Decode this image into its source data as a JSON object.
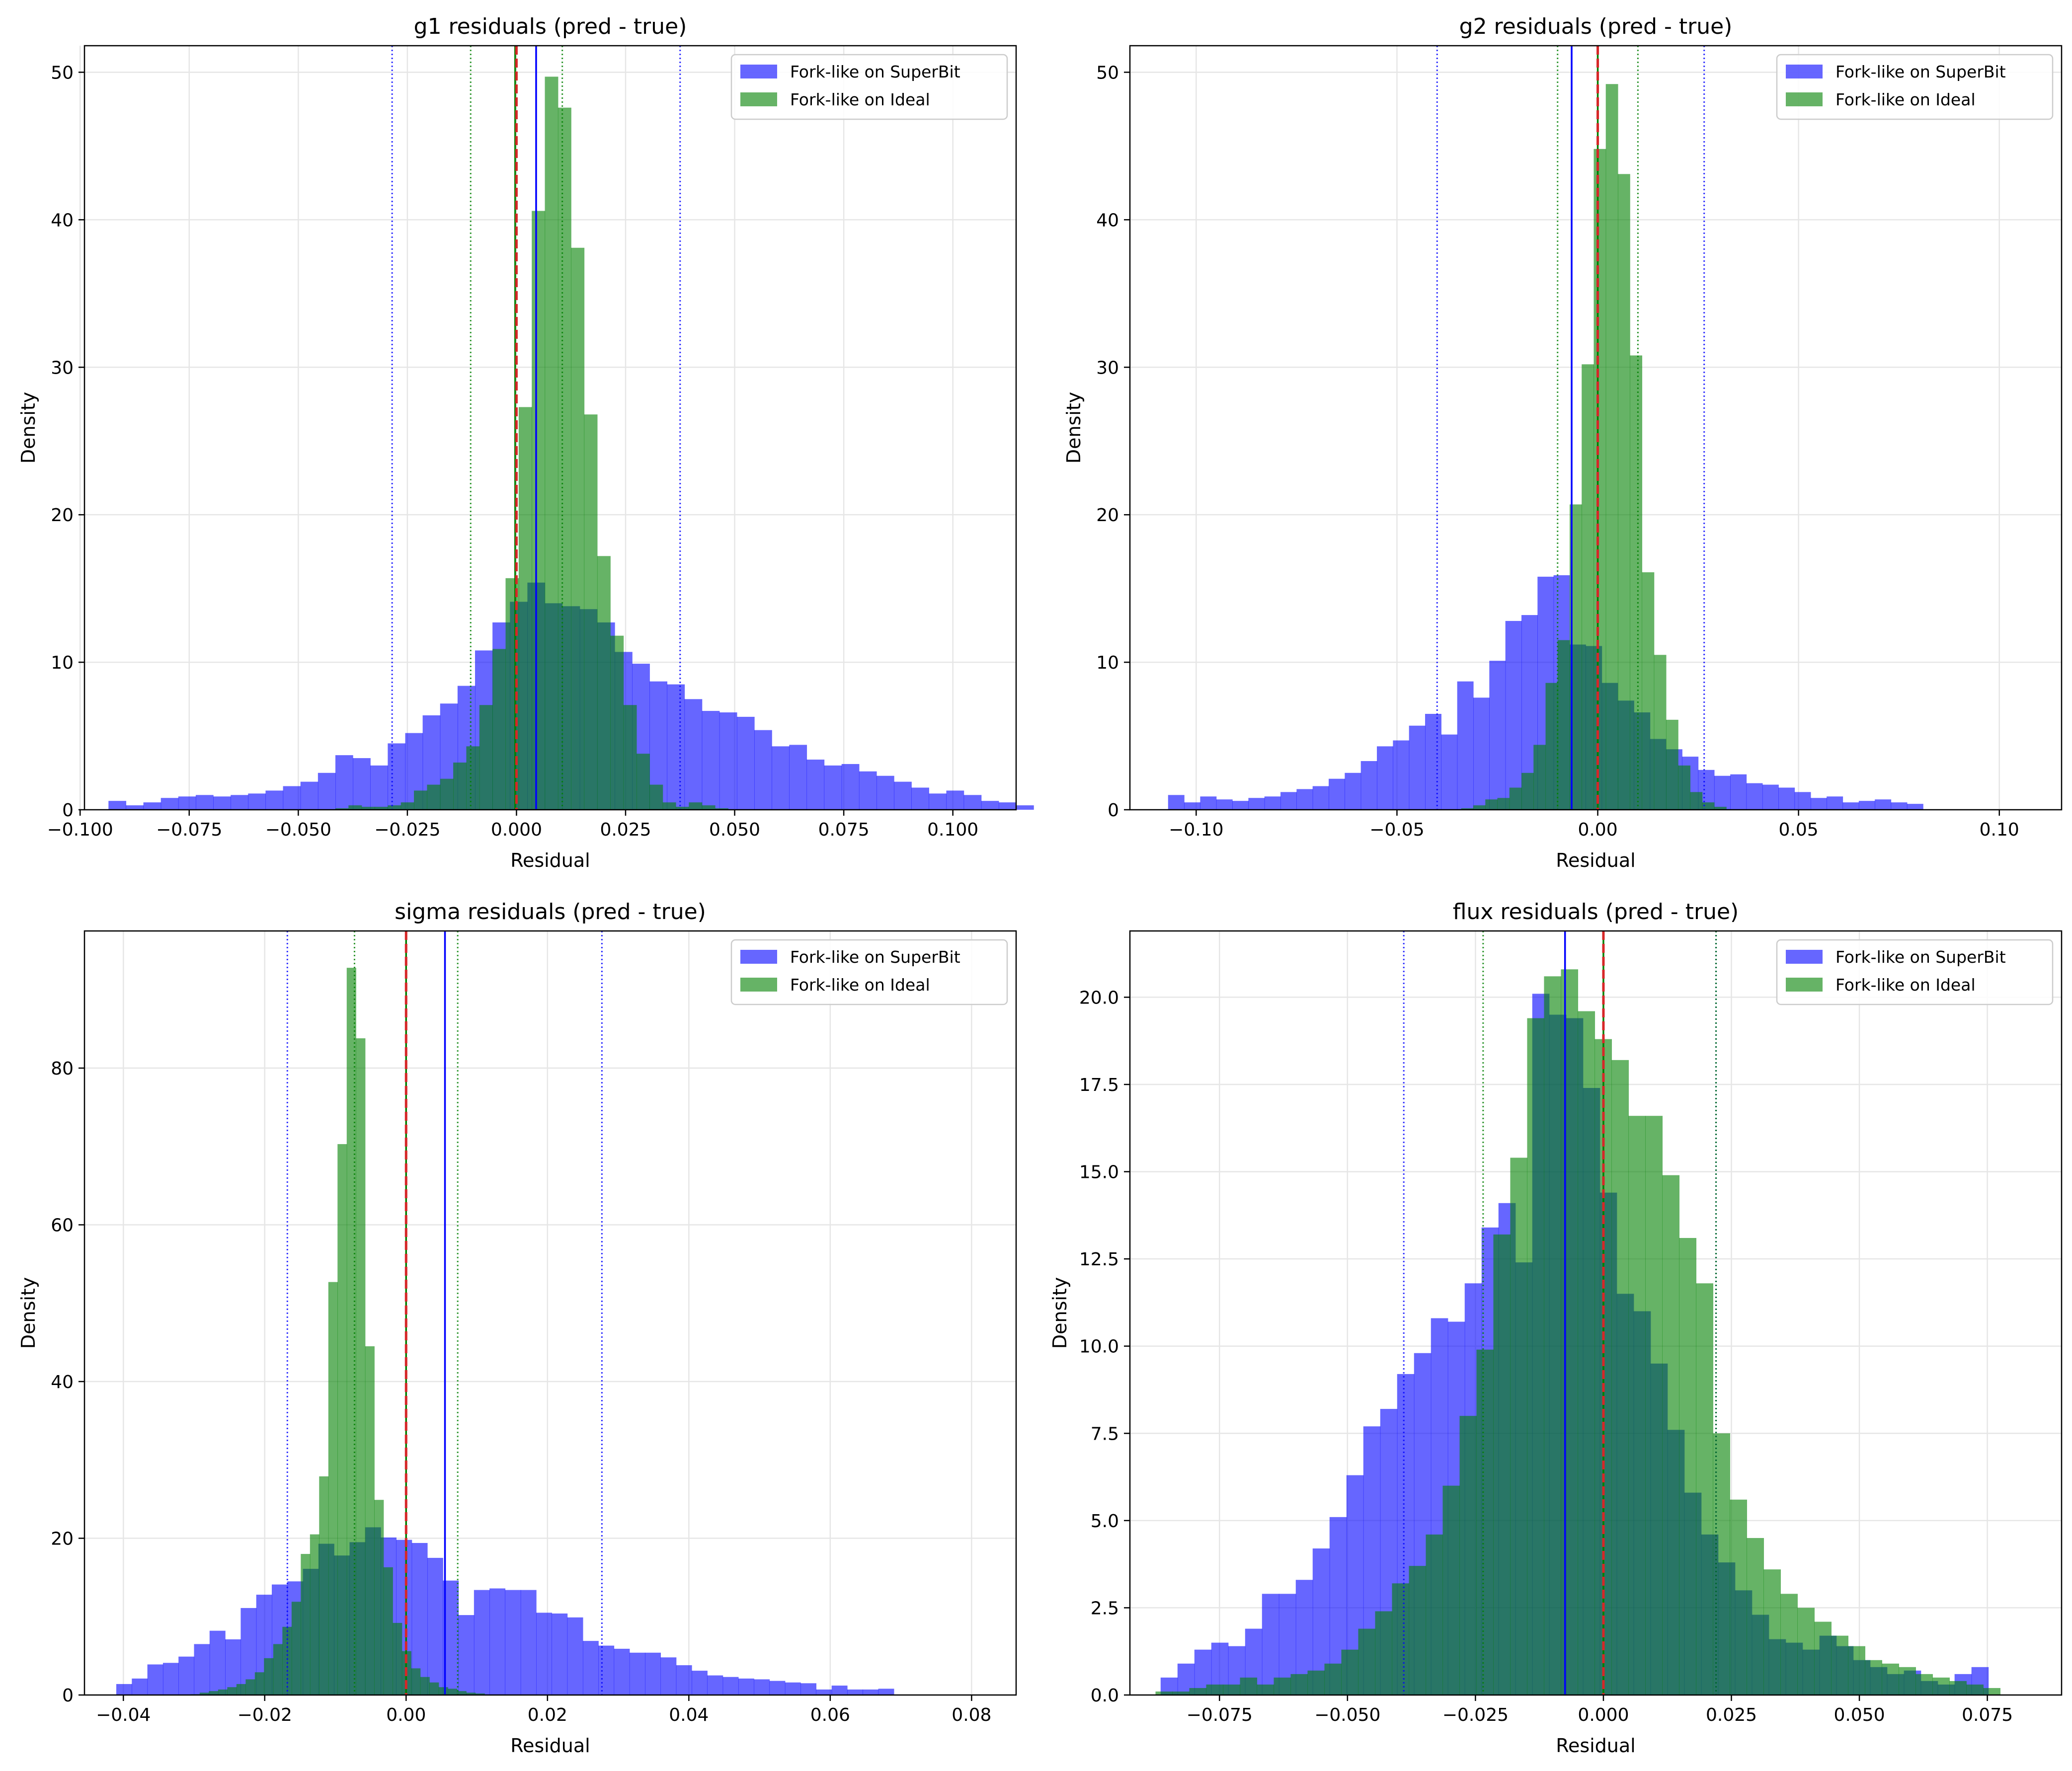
{
  "figure": {
    "legend_entries": [
      "Fork-like on SuperBit",
      "Fork-like on Ideal"
    ],
    "colors": {
      "superbit": "#0000ff",
      "ideal": "#008000",
      "overlap": "#267a6a",
      "zero_line": "#d62728",
      "grid": "#e6e6e6"
    }
  },
  "chart_data": [
    {
      "type": "histogram",
      "title": "g1 residuals (pred - true)",
      "xlabel": "Residual",
      "ylabel": "Density",
      "xlim": [
        -0.099,
        0.1145
      ],
      "ylim": [
        0,
        51.8
      ],
      "xticks": [
        -0.1,
        -0.075,
        -0.05,
        -0.025,
        0.0,
        0.025,
        0.05,
        0.075,
        0.1
      ],
      "xtick_labels": [
        "−0.100",
        "−0.075",
        "−0.050",
        "−0.025",
        "0.000",
        "0.025",
        "0.050",
        "0.075",
        "0.100"
      ],
      "yticks": [
        0,
        10,
        20,
        30,
        40,
        50
      ],
      "ytick_labels": [
        "0",
        "10",
        "20",
        "30",
        "40",
        "50"
      ],
      "legend": "top-right",
      "series": [
        {
          "name": "Fork-like on SuperBit",
          "color": "#0000ff",
          "bin_start": -0.0935,
          "bin_width": 0.004,
          "values": [
            0.6,
            0.3,
            0.5,
            0.8,
            0.9,
            1.0,
            0.9,
            1.0,
            1.1,
            1.3,
            1.6,
            1.9,
            2.5,
            3.7,
            3.5,
            3.0,
            4.5,
            5.2,
            6.4,
            7.2,
            8.4,
            10.8,
            12.7,
            14.1,
            15.4,
            14.0,
            13.8,
            13.6,
            12.7,
            10.7,
            9.9,
            8.7,
            8.5,
            7.5,
            6.7,
            6.6,
            6.3,
            5.4,
            4.3,
            4.4,
            3.4,
            3.0,
            3.1,
            2.6,
            2.3,
            1.9,
            1.5,
            1.1,
            1.3,
            1.0,
            0.6,
            0.5,
            0.3
          ]
        },
        {
          "name": "Fork-like on Ideal",
          "color": "#008000",
          "bin_start": -0.0415,
          "bin_width": 0.003,
          "values": [
            0.1,
            0.3,
            0.2,
            0.2,
            0.3,
            0.5,
            1.3,
            1.7,
            2.1,
            3.2,
            4.3,
            7.1,
            10.9,
            15.7,
            27.3,
            40.6,
            49.7,
            47.6,
            38.1,
            26.8,
            17.2,
            11.8,
            7.1,
            3.8,
            1.7,
            0.5,
            0.2,
            0.5,
            0.3,
            0.1
          ]
        }
      ],
      "lines": {
        "superbit_median": 0.0045,
        "superbit_band": [
          -0.0285,
          0.0375
        ],
        "ideal_median": -0.0003,
        "ideal_band": [
          -0.0105,
          0.0105
        ],
        "zero": 0.0
      }
    },
    {
      "type": "histogram",
      "title": "g2 residuals (pred - true)",
      "xlabel": "Residual",
      "ylabel": "Density",
      "xlim": [
        -0.1165,
        0.1155
      ],
      "ylim": [
        0,
        51.8
      ],
      "xticks": [
        -0.1,
        -0.05,
        0.0,
        0.05,
        0.1
      ],
      "xtick_labels": [
        "−0.10",
        "−0.05",
        "0.00",
        "0.05",
        "0.10"
      ],
      "yticks": [
        0,
        10,
        20,
        30,
        40,
        50
      ],
      "ytick_labels": [
        "0",
        "10",
        "20",
        "30",
        "40",
        "50"
      ],
      "legend": "top-right",
      "series": [
        {
          "name": "Fork-like on SuperBit",
          "color": "#0000ff",
          "bin_start": -0.107,
          "bin_width": 0.004,
          "values": [
            1.0,
            0.5,
            0.9,
            0.7,
            0.6,
            0.8,
            0.9,
            1.2,
            1.4,
            1.6,
            2.1,
            2.5,
            3.3,
            4.3,
            4.7,
            5.7,
            6.5,
            5.1,
            8.7,
            7.6,
            10.1,
            12.8,
            13.2,
            15.8,
            15.9,
            11.2,
            11.1,
            8.6,
            7.4,
            6.6,
            4.8,
            4.1,
            3.6,
            2.7,
            2.3,
            2.4,
            1.8,
            1.7,
            1.5,
            1.2,
            0.8,
            0.9,
            0.5,
            0.6,
            0.7,
            0.5,
            0.4
          ]
        },
        {
          "name": "Fork-like on Ideal",
          "color": "#008000",
          "bin_start": -0.034,
          "bin_width": 0.003,
          "values": [
            0.1,
            0.3,
            0.7,
            0.8,
            1.5,
            2.5,
            4.4,
            8.6,
            11.5,
            20.7,
            30.2,
            44.8,
            49.2,
            43.1,
            30.8,
            16.1,
            10.5,
            6.1,
            3.0,
            1.2,
            0.5,
            0.2
          ]
        }
      ],
      "lines": {
        "superbit_median": -0.0065,
        "superbit_band": [
          -0.04,
          0.0265
        ],
        "ideal_median": 0.0,
        "ideal_band": [
          -0.01,
          0.01
        ],
        "zero": 0.0
      }
    },
    {
      "type": "histogram",
      "title": "sigma residuals (pred - true)",
      "xlabel": "Residual",
      "ylabel": "Density",
      "xlim": [
        -0.0455,
        0.0863
      ],
      "ylim": [
        0,
        97.5
      ],
      "xticks": [
        -0.04,
        -0.02,
        0.0,
        0.02,
        0.04,
        0.06,
        0.08
      ],
      "xtick_labels": [
        "−0.04",
        "−0.02",
        "0.00",
        "0.02",
        "0.04",
        "0.06",
        "0.08"
      ],
      "yticks": [
        0,
        20,
        40,
        60,
        80
      ],
      "ytick_labels": [
        "0",
        "20",
        "40",
        "60",
        "80"
      ],
      "legend": "top-right",
      "series": [
        {
          "name": "Fork-like on SuperBit",
          "color": "#0000ff",
          "bin_start": -0.041,
          "bin_width": 0.0022,
          "values": [
            1.4,
            2.1,
            3.9,
            4.1,
            4.9,
            6.5,
            8.2,
            7.1,
            11.1,
            12.8,
            14.1,
            14.5,
            16.1,
            19.3,
            17.8,
            19.5,
            21.4,
            20.1,
            19.8,
            19.4,
            17.5,
            14.6,
            10.2,
            13.4,
            13.6,
            13.4,
            13.4,
            10.5,
            10.4,
            9.9,
            6.9,
            6.3,
            5.9,
            5.4,
            5.4,
            4.8,
            3.8,
            3.1,
            2.5,
            2.3,
            2.1,
            2.0,
            1.8,
            1.6,
            1.5,
            0.7,
            1.2,
            0.7,
            0.7,
            0.8
          ]
        },
        {
          "name": "Fork-like on Ideal",
          "color": "#008000",
          "bin_start": -0.0305,
          "bin_width": 0.0013,
          "values": [
            0.1,
            0.3,
            0.5,
            0.7,
            1.0,
            1.4,
            2.0,
            2.9,
            4.7,
            6.5,
            8.7,
            11.9,
            18.0,
            20.5,
            27.9,
            52.7,
            70.3,
            92.8,
            83.8,
            44.5,
            24.9,
            16.3,
            9.2,
            5.6,
            3.4,
            2.3,
            1.6,
            1.0,
            0.8,
            0.5,
            0.3,
            0.2
          ]
        }
      ],
      "lines": {
        "superbit_median": 0.0055,
        "superbit_band": [
          -0.0168,
          0.0277
        ],
        "ideal_median": 0.0,
        "ideal_band": [
          -0.0073,
          0.0073
        ],
        "zero": 0.0
      }
    },
    {
      "type": "histogram",
      "title": "flux residuals (pred - true)",
      "xlabel": "Residual",
      "ylabel": "Density",
      "xlim": [
        -0.0925,
        0.0895
      ],
      "ylim": [
        0,
        21.9
      ],
      "xticks": [
        -0.075,
        -0.05,
        -0.025,
        0.0,
        0.025,
        0.05,
        0.075
      ],
      "xtick_labels": [
        "−0.075",
        "−0.050",
        "−0.025",
        "0.000",
        "0.025",
        "0.050",
        "0.075"
      ],
      "yticks": [
        0,
        2.5,
        5.0,
        7.5,
        10.0,
        12.5,
        15.0,
        17.5,
        20.0
      ],
      "ytick_labels": [
        "0.0",
        "2.5",
        "5.0",
        "7.5",
        "10.0",
        "12.5",
        "15.0",
        "17.5",
        "20.0"
      ],
      "legend": "top-right",
      "series": [
        {
          "name": "Fork-like on SuperBit",
          "color": "#0000ff",
          "bin_start": -0.0865,
          "bin_width": 0.0033,
          "values": [
            0.5,
            0.9,
            1.3,
            1.5,
            1.4,
            1.9,
            2.9,
            2.9,
            3.3,
            4.2,
            5.1,
            6.3,
            7.7,
            8.2,
            9.2,
            9.8,
            10.8,
            10.7,
            11.8,
            13.4,
            14.1,
            12.4,
            20.1,
            19.5,
            19.4,
            17.4,
            14.4,
            11.5,
            11.0,
            9.5,
            7.6,
            5.8,
            4.6,
            3.8,
            3.0,
            2.3,
            1.6,
            1.5,
            1.3,
            1.7,
            1.4,
            1.0,
            0.8,
            0.6,
            0.7,
            0.4,
            0.3,
            0.6,
            0.8
          ]
        },
        {
          "name": "Fork-like on Ideal",
          "color": "#008000",
          "bin_start": -0.0875,
          "bin_width": 0.0033,
          "values": [
            0.1,
            0.1,
            0.2,
            0.3,
            0.3,
            0.5,
            0.3,
            0.5,
            0.6,
            0.7,
            0.9,
            1.3,
            1.9,
            2.4,
            3.2,
            3.7,
            4.6,
            6.0,
            8.0,
            9.9,
            13.2,
            15.4,
            19.4,
            20.6,
            20.8,
            19.6,
            18.8,
            18.2,
            16.6,
            16.6,
            14.9,
            13.1,
            11.8,
            7.5,
            5.6,
            4.5,
            3.6,
            2.9,
            2.5,
            2.1,
            1.7,
            1.4,
            1.0,
            0.9,
            0.8,
            0.6,
            0.5,
            0.4,
            0.3,
            0.2
          ]
        }
      ],
      "lines": {
        "superbit_median": -0.0075,
        "superbit_band": [
          -0.039,
          0.022
        ],
        "ideal_median": 0.0,
        "ideal_band": [
          -0.0235,
          0.022
        ],
        "zero": 0.0
      }
    }
  ]
}
